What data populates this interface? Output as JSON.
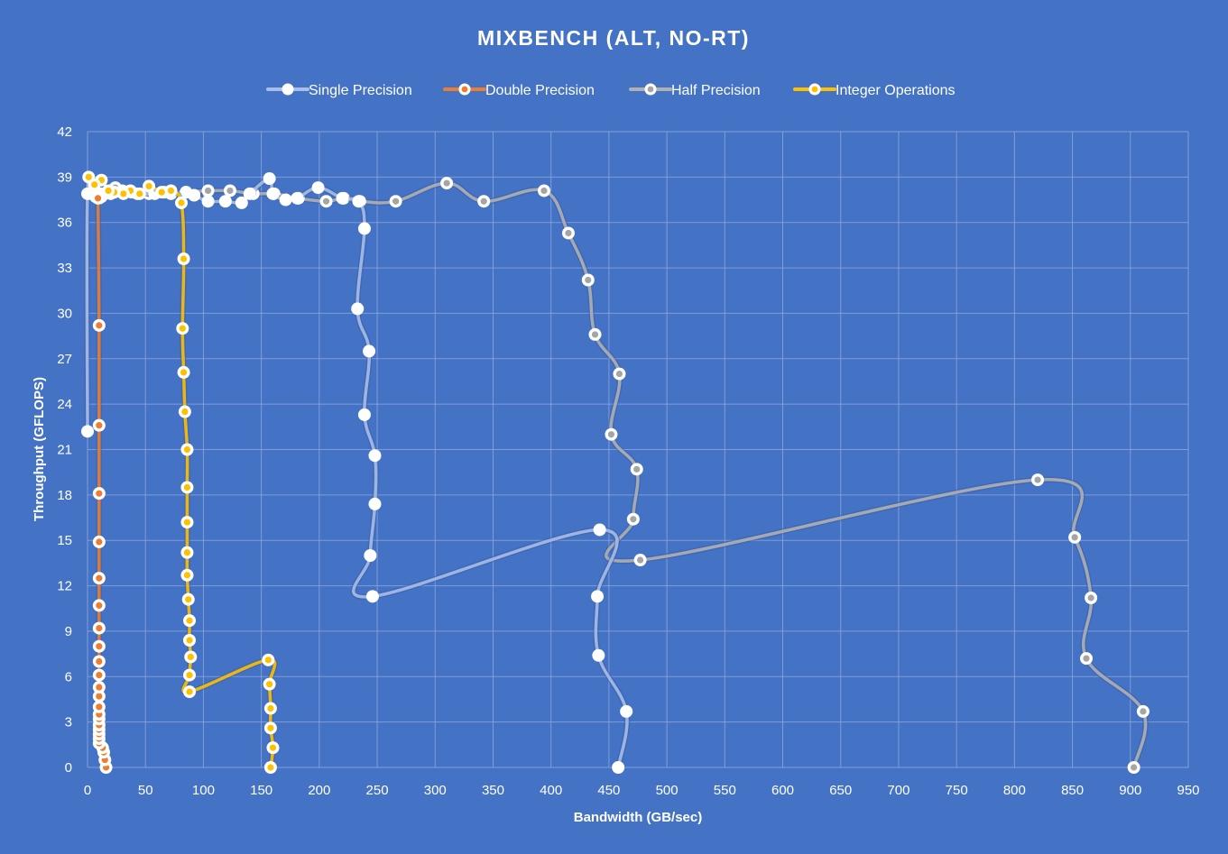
{
  "chart_data": {
    "type": "scatter",
    "title": "MIXBENCH (ALT, NO-RT)",
    "xlabel": "Bandwidth (GB/sec)",
    "ylabel": "Throughput (GFLOPS)",
    "xlim": [
      0,
      950
    ],
    "ylim": [
      0,
      42
    ],
    "x_ticks": [
      0,
      50,
      100,
      150,
      200,
      250,
      300,
      350,
      400,
      450,
      500,
      550,
      600,
      650,
      700,
      750,
      800,
      850,
      900,
      950
    ],
    "y_ticks": [
      0,
      3,
      6,
      9,
      12,
      15,
      18,
      21,
      24,
      27,
      30,
      33,
      36,
      39,
      42
    ],
    "grid": true,
    "legend_position": "top",
    "series": [
      {
        "name": "Single Precision",
        "color": "#a9bde6",
        "marker_fill": "#ffffff",
        "points": [
          [
            458,
            0
          ],
          [
            465,
            3.7
          ],
          [
            441,
            7.4
          ],
          [
            440,
            11.3
          ],
          [
            442,
            15.7
          ],
          [
            246,
            11.3
          ],
          [
            244,
            14
          ],
          [
            248,
            17.4
          ],
          [
            248,
            20.6
          ],
          [
            239,
            23.3
          ],
          [
            243,
            27.5
          ],
          [
            233,
            30.3
          ],
          [
            239,
            35.6
          ],
          [
            234,
            37.4
          ],
          [
            220,
            37.6
          ],
          [
            199,
            38.3
          ],
          [
            181,
            37.6
          ],
          [
            171,
            37.5
          ],
          [
            160,
            37.9
          ],
          [
            157,
            38.9
          ],
          [
            140,
            37.9
          ],
          [
            133,
            37.3
          ],
          [
            119,
            37.4
          ],
          [
            104,
            37.4
          ],
          [
            92,
            37.8
          ],
          [
            85,
            38
          ],
          [
            72,
            37.9
          ],
          [
            58,
            37.9
          ],
          [
            43,
            37.9
          ],
          [
            30,
            38.1
          ],
          [
            20,
            37.9
          ],
          [
            12,
            37.7
          ],
          [
            10,
            37.6
          ],
          [
            7,
            37.7
          ],
          [
            0,
            37.9
          ],
          [
            0,
            22.2
          ]
        ]
      },
      {
        "name": "Double Precision",
        "color": "#ed7d31",
        "marker_fill": "#ed7d31",
        "points": [
          [
            16,
            0
          ],
          [
            15,
            0.5
          ],
          [
            14,
            1
          ],
          [
            13,
            1.3
          ],
          [
            10,
            1.6
          ],
          [
            10,
            1.9
          ],
          [
            10,
            2.2
          ],
          [
            10,
            2.5
          ],
          [
            10,
            2.8
          ],
          [
            10,
            3.2
          ],
          [
            10,
            3.5
          ],
          [
            10,
            4
          ],
          [
            10,
            4.7
          ],
          [
            10,
            5.3
          ],
          [
            10,
            6.1
          ],
          [
            10,
            7
          ],
          [
            10,
            8
          ],
          [
            10,
            9.2
          ],
          [
            10,
            10.7
          ],
          [
            10,
            12.5
          ],
          [
            10,
            14.9
          ],
          [
            10,
            18.1
          ],
          [
            10,
            22.6
          ],
          [
            10,
            29.2
          ],
          [
            9,
            37.6
          ]
        ]
      },
      {
        "name": "Half Precision",
        "color": "#b0b0b0",
        "marker_fill": "#a5a5a5",
        "points": [
          [
            903,
            0
          ],
          [
            911,
            3.7
          ],
          [
            862,
            7.2
          ],
          [
            866,
            11.2
          ],
          [
            852,
            15.2
          ],
          [
            820,
            19
          ],
          [
            477,
            13.7
          ],
          [
            471,
            16.4
          ],
          [
            474,
            19.7
          ],
          [
            452,
            22
          ],
          [
            459,
            26
          ],
          [
            438,
            28.6
          ],
          [
            432,
            32.2
          ],
          [
            415,
            35.3
          ],
          [
            394,
            38.1
          ],
          [
            342,
            37.4
          ],
          [
            310,
            38.6
          ],
          [
            266,
            37.4
          ],
          [
            235,
            37.4
          ],
          [
            221,
            37.6
          ],
          [
            206,
            37.4
          ],
          [
            182,
            37.6
          ],
          [
            161,
            37.9
          ],
          [
            143,
            37.9
          ],
          [
            123,
            38.1
          ],
          [
            104,
            38.1
          ],
          [
            85,
            38
          ],
          [
            66,
            38
          ],
          [
            53,
            37.9
          ],
          [
            38,
            38
          ],
          [
            24,
            38.3
          ],
          [
            12,
            37.9
          ],
          [
            2,
            37.9
          ]
        ]
      },
      {
        "name": "Integer Operations",
        "color": "#ffc000",
        "marker_fill": "#ffc000",
        "points": [
          [
            158,
            0
          ],
          [
            160,
            1.3
          ],
          [
            158,
            2.6
          ],
          [
            158,
            3.9
          ],
          [
            157,
            5.5
          ],
          [
            156,
            7.1
          ],
          [
            88,
            5
          ],
          [
            88,
            6.1
          ],
          [
            89,
            7.3
          ],
          [
            88,
            8.4
          ],
          [
            88,
            9.7
          ],
          [
            87,
            11.1
          ],
          [
            86,
            12.7
          ],
          [
            86,
            14.2
          ],
          [
            86,
            16.2
          ],
          [
            86,
            18.5
          ],
          [
            86,
            21
          ],
          [
            84,
            23.5
          ],
          [
            83,
            26.1
          ],
          [
            82,
            29
          ],
          [
            83,
            33.6
          ],
          [
            81,
            37.3
          ],
          [
            72,
            38.1
          ],
          [
            64,
            38
          ],
          [
            53,
            38.4
          ],
          [
            45,
            37.9
          ],
          [
            37,
            38.1
          ],
          [
            31,
            37.9
          ],
          [
            23,
            38
          ],
          [
            18,
            38.1
          ],
          [
            12,
            38.8
          ],
          [
            6,
            38.5
          ],
          [
            1,
            39
          ]
        ]
      }
    ]
  }
}
